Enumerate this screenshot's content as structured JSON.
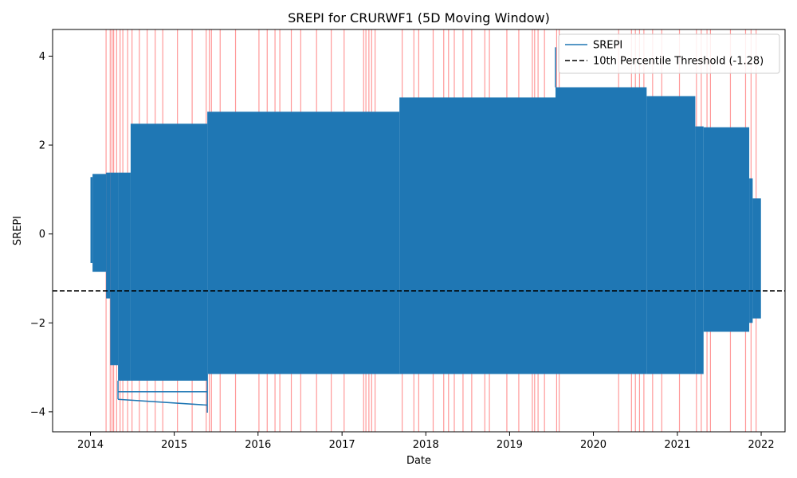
{
  "chart_data": {
    "type": "line",
    "title": "SREPI for CRURWF1 (5D Moving Window)",
    "xlabel": "Date",
    "ylabel": "SREPI",
    "xlim": [
      "2013-07-20",
      "2022-04-15"
    ],
    "ylim": [
      -4.45,
      4.6
    ],
    "x_ticks": [
      "2014",
      "2015",
      "2016",
      "2017",
      "2018",
      "2019",
      "2020",
      "2021",
      "2022"
    ],
    "y_ticks": [
      -4,
      -2,
      0,
      2,
      4
    ],
    "grid": false,
    "legend_position": "upper-right",
    "threshold": {
      "name": "10th Percentile Threshold (-1.28)",
      "value": -1.28,
      "color": "#000000",
      "style": "dashed"
    },
    "series": [
      {
        "name": "SREPI",
        "color": "#1f77b4",
        "band_segments": [
          {
            "start": "2014-01-01",
            "end": "2014-01-10",
            "low": -0.65,
            "high": 1.28
          },
          {
            "start": "2014-01-10",
            "end": "2014-03-10",
            "low": -0.85,
            "high": 1.35
          },
          {
            "start": "2014-03-10",
            "end": "2014-03-28",
            "low": -1.45,
            "high": 1.38
          },
          {
            "start": "2014-03-28",
            "end": "2014-05-01",
            "low": -2.95,
            "high": 1.38
          },
          {
            "start": "2014-05-01",
            "end": "2014-06-25",
            "low": -3.3,
            "high": 1.38
          },
          {
            "start": "2014-06-25",
            "end": "2015-05-25",
            "low": -3.3,
            "high": 2.48
          },
          {
            "start": "2015-05-25",
            "end": "2017-09-08",
            "low": -3.15,
            "high": 2.75
          },
          {
            "start": "2017-09-08",
            "end": "2019-07-20",
            "low": -3.15,
            "high": 3.07
          },
          {
            "start": "2019-07-20",
            "end": "2020-08-20",
            "low": -3.15,
            "high": 3.3
          },
          {
            "start": "2020-08-20",
            "end": "2021-03-20",
            "low": -3.15,
            "high": 3.1
          },
          {
            "start": "2021-03-20",
            "end": "2021-04-25",
            "low": -3.15,
            "high": 2.42
          },
          {
            "start": "2021-04-25",
            "end": "2021-11-10",
            "low": -2.2,
            "high": 2.4
          },
          {
            "start": "2021-11-10",
            "end": "2021-11-25",
            "low": -2.0,
            "high": 1.25
          },
          {
            "start": "2021-11-25",
            "end": "2021-12-31",
            "low": -1.9,
            "high": 0.8
          }
        ],
        "outlier_points": [
          {
            "x": "2014-05-01",
            "y": -3.55
          },
          {
            "x": "2014-05-01",
            "y": -3.72
          },
          {
            "x": "2015-05-25",
            "y": -3.85
          },
          {
            "x": "2015-05-25",
            "y": -4.02
          },
          {
            "x": "2019-07-20",
            "y": 4.2
          }
        ]
      }
    ],
    "drought_markers": {
      "color": "#ff0000",
      "dates": [
        "2014-03-10",
        "2014-03-28",
        "2014-04-05",
        "2014-04-12",
        "2014-04-25",
        "2014-05-10",
        "2014-05-22",
        "2014-06-12",
        "2014-07-01",
        "2014-08-02",
        "2014-09-05",
        "2014-10-10",
        "2014-11-12",
        "2015-01-15",
        "2015-03-20",
        "2015-05-20",
        "2015-06-03",
        "2015-06-12",
        "2015-07-20",
        "2015-09-25",
        "2016-01-05",
        "2016-02-10",
        "2016-03-15",
        "2016-04-05",
        "2016-05-25",
        "2016-07-05",
        "2016-09-12",
        "2016-11-15",
        "2017-01-10",
        "2017-04-05",
        "2017-04-15",
        "2017-04-28",
        "2017-05-10",
        "2017-05-25",
        "2017-09-20",
        "2017-11-10",
        "2017-12-01",
        "2018-02-02",
        "2018-03-20",
        "2018-04-10",
        "2018-05-05",
        "2018-06-12",
        "2018-07-20",
        "2018-09-15",
        "2018-10-05",
        "2018-12-20",
        "2019-02-10",
        "2019-04-10",
        "2019-04-20",
        "2019-05-05",
        "2019-06-02",
        "2019-07-25",
        "2019-08-05",
        "2020-04-20",
        "2020-06-15",
        "2020-07-02",
        "2020-07-20",
        "2020-08-08",
        "2020-09-15",
        "2020-10-25",
        "2021-01-10",
        "2021-03-25",
        "2021-04-15",
        "2021-05-10",
        "2021-05-25",
        "2021-08-20",
        "2021-10-25",
        "2021-11-18",
        "2021-12-10"
      ]
    }
  }
}
